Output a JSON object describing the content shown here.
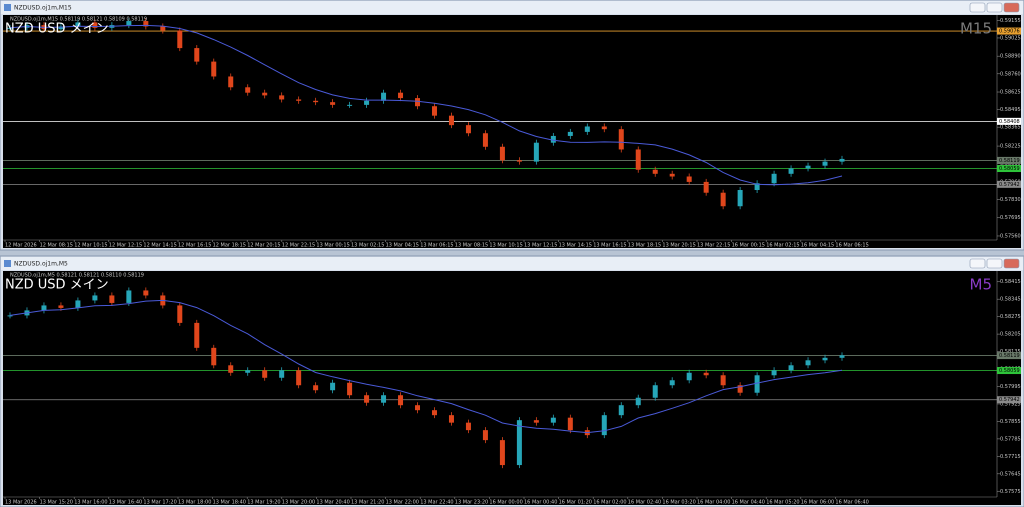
{
  "windows": [
    {
      "title": "NZDUSD.oj1m,M15",
      "info": "NZDUSD.oj1m,M15 0.58119 0.58121 0.58109 0.58119",
      "symbol_label": "NZD USD メイン",
      "timeframe": "M15",
      "timeframe_color": "#7a7a7a",
      "up_color": "#26a6b8",
      "down_color": "#e0461c",
      "ma_color": "#4a5ad8",
      "ylim": [
        0.57545,
        0.5918
      ],
      "yticks": [
        0.59155,
        0.59025,
        {
          "value": 0.5889,
          "label": "0.58890"
        },
        {
          "value": 0.5876,
          "label": "0.58760"
        },
        0.58625,
        0.58495,
        0.58365,
        0.58225,
        0.58095,
        {
          "value": 0.5796,
          "label": "0.57960"
        },
        {
          "value": 0.5783,
          "label": "0.57830"
        },
        0.57695,
        {
          "value": 0.5756,
          "label": "0.57560"
        }
      ],
      "levels": [
        {
          "value": 0.59076,
          "color": "#e8a030"
        },
        {
          "value": 0.58408,
          "color": "#ffffff"
        },
        {
          "value": 0.58119,
          "color": "#6a7a6a"
        },
        {
          "value": 0.58059,
          "color": "#2ec43a"
        },
        {
          "value": 0.57942,
          "color": "#8a8a8a"
        }
      ],
      "time_labels": [
        "12 Mar 2026",
        "12 Mar 08:15",
        "12 Mar 10:15",
        "12 Mar 12:15",
        "12 Mar 14:15",
        "12 Mar 16:15",
        "12 Mar 18:15",
        "12 Mar 20:15",
        "12 Mar 22:15",
        "13 Mar 00:15",
        "13 Mar 02:15",
        "13 Mar 04:15",
        "13 Mar 06:15",
        "13 Mar 08:15",
        "13 Mar 10:15",
        "13 Mar 12:15",
        "13 Mar 14:15",
        "13 Mar 16:15",
        "13 Mar 18:15",
        "13 Mar 20:15",
        "13 Mar 22:15",
        "16 Mar 00:15",
        "16 Mar 02:15",
        "16 Mar 04:15",
        "16 Mar 06:15"
      ],
      "prices": [
        0.591,
        0.5912,
        0.5909,
        0.5911,
        0.5914,
        0.591,
        0.5912,
        0.5915,
        0.5911,
        0.5908,
        0.5895,
        0.5885,
        0.5874,
        0.5866,
        0.5862,
        0.586,
        0.5857,
        0.5856,
        0.5855,
        0.5853,
        0.5853,
        0.5856,
        0.5862,
        0.5858,
        0.5852,
        0.5845,
        0.5838,
        0.5832,
        0.5822,
        0.5812,
        0.5811,
        0.5825,
        0.583,
        0.5833,
        0.5837,
        0.5835,
        0.582,
        0.5805,
        0.5802,
        0.58,
        0.5796,
        0.5788,
        0.5778,
        0.579,
        0.5795,
        0.5802,
        0.5806,
        0.5808,
        0.5811,
        0.5813
      ]
    },
    {
      "title": "NZDUSD.oj1m,M5",
      "info": "NZDUSD.oj1m,M5 0.58121 0.58121 0.58110 0.58119",
      "symbol_label": "NZD USD メイン",
      "timeframe": "M5",
      "timeframe_color": "#8a3cc8",
      "up_color": "#26a6b8",
      "down_color": "#e0461c",
      "ma_color": "#4a5ad8",
      "ylim": [
        0.5756,
        0.5845
      ],
      "yticks": [
        0.58415,
        0.58345,
        0.58275,
        0.58205,
        0.58135,
        0.58065,
        0.57995,
        0.57925,
        0.57855,
        0.57785,
        0.57715,
        0.57645,
        0.57575
      ],
      "levels": [
        {
          "value": 0.58119,
          "color": "#6a7a6a"
        },
        {
          "value": 0.58059,
          "color": "#2ec43a"
        },
        {
          "value": 0.57942,
          "color": "#8a8a8a"
        }
      ],
      "time_labels": [
        "13 Mar 2026",
        "13 Mar 15:20",
        "13 Mar 16:00",
        "13 Mar 16:40",
        "13 Mar 17:20",
        "13 Mar 18:00",
        "13 Mar 18:40",
        "13 Mar 19:20",
        "13 Mar 20:00",
        "13 Mar 20:40",
        "13 Mar 21:20",
        "13 Mar 22:00",
        "13 Mar 22:40",
        "13 Mar 23:20",
        "16 Mar 00:00",
        "16 Mar 00:40",
        "16 Mar 01:20",
        "16 Mar 02:00",
        "16 Mar 02:40",
        "16 Mar 03:20",
        "16 Mar 04:00",
        "16 Mar 04:40",
        "16 Mar 05:20",
        "16 Mar 06:00",
        "16 Mar 06:40"
      ],
      "prices": [
        0.5828,
        0.583,
        0.5832,
        0.5831,
        0.5834,
        0.5836,
        0.5833,
        0.5838,
        0.5836,
        0.5832,
        0.5825,
        0.5815,
        0.5808,
        0.5805,
        0.5806,
        0.5803,
        0.5806,
        0.58,
        0.5798,
        0.5801,
        0.5796,
        0.5793,
        0.5796,
        0.5792,
        0.579,
        0.5788,
        0.5785,
        0.5782,
        0.5778,
        0.5768,
        0.5786,
        0.5785,
        0.5787,
        0.5782,
        0.578,
        0.5788,
        0.5792,
        0.5795,
        0.58,
        0.5802,
        0.5805,
        0.5804,
        0.58,
        0.5797,
        0.5804,
        0.5806,
        0.5808,
        0.581,
        0.5811,
        0.5812
      ]
    }
  ]
}
